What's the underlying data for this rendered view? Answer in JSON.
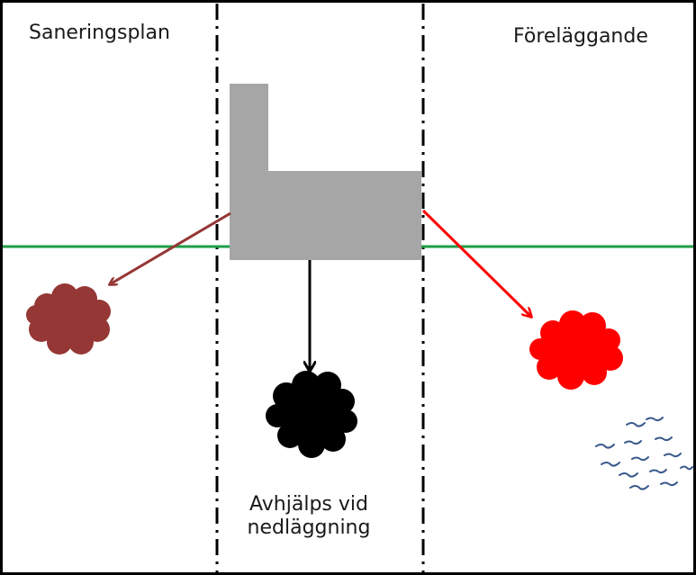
{
  "labels": {
    "left": "Saneringsplan",
    "right": "Föreläggande",
    "bottom_line1": "Avhjälps vid",
    "bottom_line2": "nedläggning"
  },
  "colors": {
    "border": "#000000",
    "building": "#a6a6a6",
    "ground_line": "#1e9e48",
    "left_plume": "#953735",
    "center_plume": "#000000",
    "right_plume": "#ff0000",
    "birds": "#3a5a8c"
  },
  "icons": {
    "building": "factory-building",
    "plume": "contamination-cloud",
    "birds": "bird-flock"
  }
}
